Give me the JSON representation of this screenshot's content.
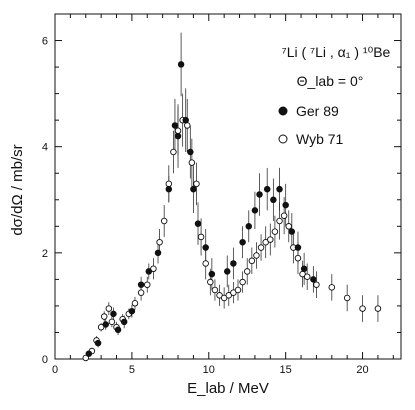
{
  "chart_data": {
    "type": "scatter",
    "title_lines": [
      "⁷Li ( ⁷Li , α₁ ) ¹⁰Be",
      "Θ_lab = 0°"
    ],
    "xlabel": "E_lab / MeV",
    "ylabel": "dσ/dΩ  /  mb/sr",
    "xlim": [
      0,
      22.5
    ],
    "ylim": [
      0,
      6.5
    ],
    "x_ticks": [
      0,
      5,
      10,
      15,
      20
    ],
    "y_ticks": [
      0,
      2,
      4,
      6
    ],
    "legend": [
      {
        "label": "Ger 89",
        "marker": "filled-circle"
      },
      {
        "label": "Wyb 71",
        "marker": "open-circle"
      }
    ],
    "series": [
      {
        "name": "Ger 89",
        "marker": "filled",
        "points": [
          [
            2.2,
            0.1,
            0.05
          ],
          [
            2.8,
            0.3,
            0.08
          ],
          [
            3.3,
            0.65,
            0.1
          ],
          [
            3.8,
            0.85,
            0.12
          ],
          [
            4.1,
            0.55,
            0.1
          ],
          [
            4.5,
            0.7,
            0.12
          ],
          [
            5.0,
            0.9,
            0.12
          ],
          [
            5.6,
            1.4,
            0.15
          ],
          [
            6.1,
            1.65,
            0.15
          ],
          [
            6.7,
            2.0,
            0.2
          ],
          [
            7.4,
            3.2,
            0.25
          ],
          [
            7.8,
            4.4,
            0.5
          ],
          [
            8.0,
            4.2,
            0.6
          ],
          [
            8.2,
            5.55,
            0.6
          ],
          [
            8.5,
            4.5,
            0.6
          ],
          [
            8.8,
            3.9,
            0.5
          ],
          [
            9.0,
            3.2,
            0.45
          ],
          [
            9.3,
            2.55,
            0.4
          ],
          [
            9.8,
            2.1,
            0.35
          ],
          [
            10.2,
            1.6,
            0.3
          ],
          [
            11.2,
            1.65,
            0.3
          ],
          [
            11.6,
            1.8,
            0.3
          ],
          [
            12.2,
            2.2,
            0.3
          ],
          [
            12.6,
            2.5,
            0.3
          ],
          [
            13.0,
            2.8,
            0.35
          ],
          [
            13.3,
            3.1,
            0.4
          ],
          [
            13.8,
            3.2,
            0.4
          ],
          [
            14.2,
            3.0,
            0.4
          ],
          [
            14.6,
            3.2,
            0.4
          ],
          [
            15.0,
            2.9,
            0.4
          ],
          [
            15.4,
            2.4,
            0.35
          ],
          [
            15.8,
            2.1,
            0.3
          ],
          [
            16.2,
            1.7,
            0.3
          ],
          [
            16.8,
            1.5,
            0.25
          ]
        ]
      },
      {
        "name": "Wyb 71",
        "marker": "open",
        "points": [
          [
            2.0,
            0.02,
            0.02
          ],
          [
            2.4,
            0.15,
            0.05
          ],
          [
            2.7,
            0.35,
            0.08
          ],
          [
            3.0,
            0.6,
            0.08
          ],
          [
            3.2,
            0.8,
            0.1
          ],
          [
            3.5,
            0.95,
            0.12
          ],
          [
            3.7,
            0.7,
            0.1
          ],
          [
            4.0,
            0.6,
            0.1
          ],
          [
            4.4,
            0.75,
            0.1
          ],
          [
            4.8,
            0.85,
            0.1
          ],
          [
            5.2,
            1.05,
            0.12
          ],
          [
            5.6,
            1.25,
            0.15
          ],
          [
            6.0,
            1.4,
            0.15
          ],
          [
            6.4,
            1.7,
            0.2
          ],
          [
            6.8,
            2.2,
            0.25
          ],
          [
            7.1,
            2.6,
            0.3
          ],
          [
            7.4,
            3.3,
            0.35
          ],
          [
            7.7,
            3.9,
            0.4
          ],
          [
            8.0,
            4.3,
            0.45
          ],
          [
            8.3,
            4.5,
            0.5
          ],
          [
            8.6,
            4.4,
            0.5
          ],
          [
            8.9,
            3.7,
            0.45
          ],
          [
            9.2,
            3.3,
            0.4
          ],
          [
            9.5,
            2.3,
            0.35
          ],
          [
            9.8,
            1.8,
            0.3
          ],
          [
            10.1,
            1.45,
            0.25
          ],
          [
            10.4,
            1.3,
            0.2
          ],
          [
            10.7,
            1.2,
            0.2
          ],
          [
            11.0,
            1.15,
            0.2
          ],
          [
            11.3,
            1.2,
            0.2
          ],
          [
            11.6,
            1.25,
            0.2
          ],
          [
            11.9,
            1.3,
            0.2
          ],
          [
            12.2,
            1.45,
            0.2
          ],
          [
            12.5,
            1.65,
            0.25
          ],
          [
            12.8,
            1.85,
            0.25
          ],
          [
            13.1,
            1.95,
            0.25
          ],
          [
            13.4,
            2.1,
            0.25
          ],
          [
            13.7,
            2.2,
            0.3
          ],
          [
            14.0,
            2.25,
            0.3
          ],
          [
            14.3,
            2.4,
            0.3
          ],
          [
            14.6,
            2.6,
            0.35
          ],
          [
            14.9,
            2.7,
            0.35
          ],
          [
            15.2,
            2.5,
            0.3
          ],
          [
            15.5,
            2.1,
            0.3
          ],
          [
            15.8,
            1.9,
            0.3
          ],
          [
            16.1,
            1.6,
            0.25
          ],
          [
            16.4,
            1.55,
            0.25
          ],
          [
            17.0,
            1.4,
            0.25
          ],
          [
            18.0,
            1.35,
            0.25
          ],
          [
            19.0,
            1.15,
            0.25
          ],
          [
            20.0,
            0.95,
            0.25
          ],
          [
            21.0,
            0.95,
            0.25
          ]
        ]
      }
    ]
  }
}
